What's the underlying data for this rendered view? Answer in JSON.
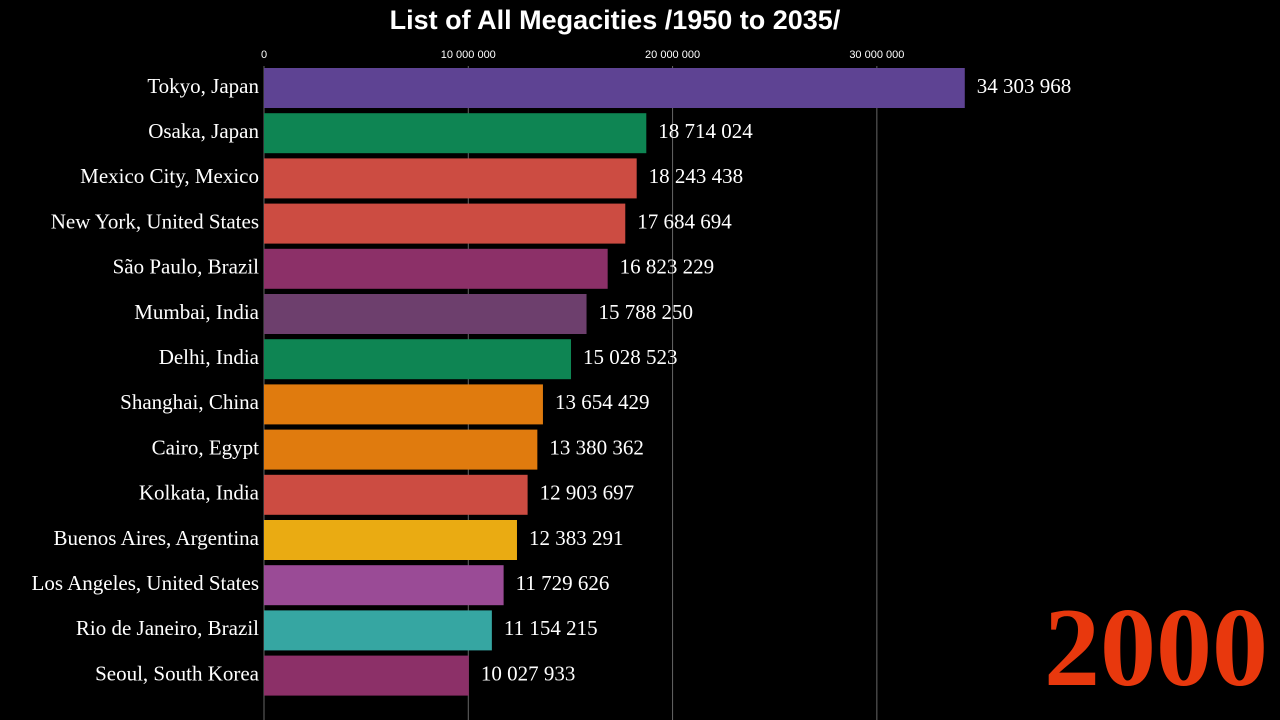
{
  "chart_data": {
    "type": "bar",
    "orientation": "horizontal",
    "title": "List of All Megacities /1950 to 2035/",
    "annotation": "2000",
    "categories": [
      "Tokyo, Japan",
      "Osaka, Japan",
      "Mexico City, Mexico",
      "New York, United States",
      "São Paulo, Brazil",
      "Mumbai, India",
      "Delhi, India",
      "Shanghai, China",
      "Cairo, Egypt",
      "Kolkata, India",
      "Buenos Aires, Argentina",
      "Los Angeles, United States",
      "Rio de Janeiro, Brazil",
      "Seoul, South Korea"
    ],
    "values": [
      34303968,
      18714024,
      18243438,
      17684694,
      16823229,
      15788250,
      15028523,
      13654429,
      13380362,
      12903697,
      12383291,
      11729626,
      11154215,
      10027933
    ],
    "value_labels": [
      "34 303 968",
      "18 714 024",
      "18 243 438",
      "17 684 694",
      "16 823 229",
      "15 788 250",
      "15 028 523",
      "13 654 429",
      "13 380 362",
      "12 903 697",
      "12 383 291",
      "11 729 626",
      "11 154 215",
      "10 027 933"
    ],
    "colors": [
      "#5e4393",
      "#0e8553",
      "#cc4c42",
      "#cc4c42",
      "#8c3068",
      "#6d3f6d",
      "#0e8553",
      "#e07b0e",
      "#e07b0e",
      "#cc4c42",
      "#eaab12",
      "#9a4b96",
      "#36a6a2",
      "#8c3068"
    ],
    "xlim": [
      0,
      35000000
    ],
    "xticks": [
      0,
      {
        "value": 10000000,
        "label": "10 000 000"
      },
      {
        "value": 20000000,
        "label": "20 000 000"
      },
      {
        "value": 30000000,
        "label": "30 000 000"
      }
    ],
    "grid": true
  }
}
